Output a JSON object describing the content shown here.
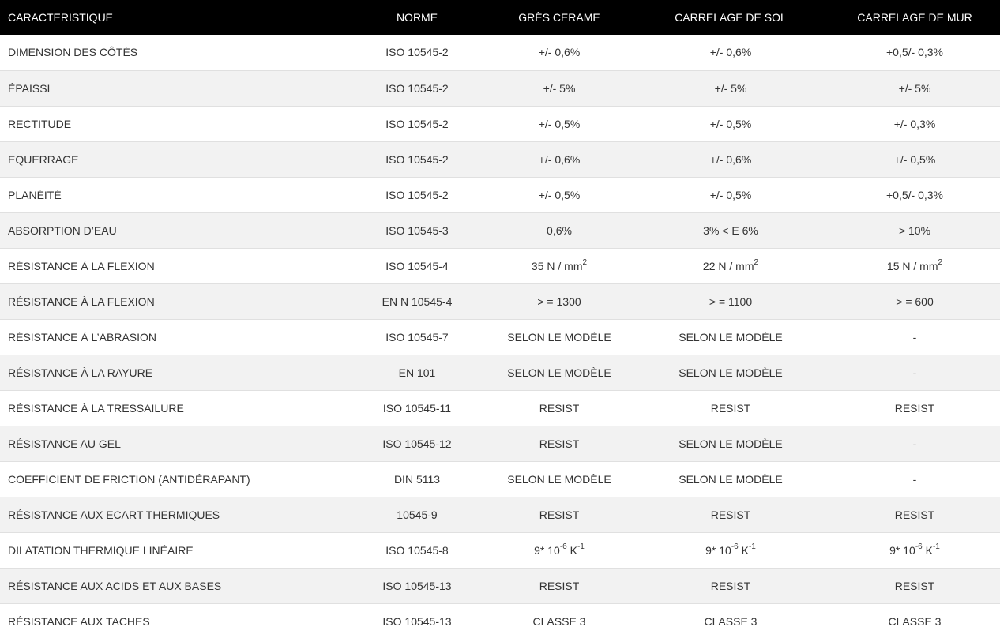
{
  "chart_data": {
    "type": "table",
    "columns": [
      "CARACTERISTIQUE",
      "NORME",
      "GRÈS CERAME",
      "CARRELAGE DE SOL",
      "CARRELAGE DE MUR"
    ],
    "rows": [
      [
        "DIMENSION DES CÔTÉS",
        "ISO 10545-2",
        "+/- 0,6%",
        "+/- 0,6%",
        "+0,5/- 0,3%"
      ],
      [
        "ÉPAISSI",
        "ISO 10545-2",
        "+/- 5%",
        "+/- 5%",
        "+/- 5%"
      ],
      [
        "RECTITUDE",
        "ISO 10545-2",
        "+/- 0,5%",
        "+/- 0,5%",
        "+/- 0,3%"
      ],
      [
        "EQUERRAGE",
        "ISO 10545-2",
        "+/- 0,6%",
        "+/- 0,6%",
        "+/- 0,5%"
      ],
      [
        "PLANÉITÉ",
        "ISO 10545-2",
        "+/- 0,5%",
        "+/- 0,5%",
        "+0,5/- 0,3%"
      ],
      [
        "ABSORPTION D’EAU",
        "ISO 10545-3",
        "0,6%",
        "3% < E 6%",
        "> 10%"
      ],
      [
        "RÉSISTANCE À LA FLEXION",
        "ISO 10545-4",
        "35 N / mm^{2}",
        "22 N / mm^{2}",
        "15 N / mm^{2}"
      ],
      [
        "RÉSISTANCE À LA FLEXION",
        "EN N 10545-4",
        "> = 1300",
        "> = 1100",
        "> = 600"
      ],
      [
        "RÉSISTANCE À L’ABRASION",
        "ISO 10545-7",
        "SELON LE MODÈLE",
        "SELON LE MODÈLE",
        "-"
      ],
      [
        "RÉSISTANCE À LA RAYURE",
        "EN 101",
        "SELON LE MODÈLE",
        "SELON LE MODÈLE",
        "-"
      ],
      [
        "RÉSISTANCE À LA TRESSAILURE",
        "ISO 10545-11",
        "RESIST",
        "RESIST",
        "RESIST"
      ],
      [
        "RÉSISTANCE AU GEL",
        "ISO 10545-12",
        "RESIST",
        "SELON LE MODÈLE",
        "-"
      ],
      [
        "COEFFICIENT DE FRICTION (ANTIDÉRAPANT)",
        "DIN 5113",
        "SELON LE MODÈLE",
        "SELON LE MODÈLE",
        "-"
      ],
      [
        "RÉSISTANCE AUX ECART THERMIQUES",
        "10545-9",
        "RESIST",
        "RESIST",
        "RESIST"
      ],
      [
        "DILATATION THERMIQUE LINÉAIRE",
        "ISO 10545-8",
        "9* 10^{-6} K^{-1}",
        "9* 10^{-6} K^{-1}",
        "9* 10^{-6} K^{-1}"
      ],
      [
        "RÉSISTANCE AUX ACIDS ET AUX BASES",
        "ISO 10545-13",
        "RESIST",
        "RESIST",
        "RESIST"
      ],
      [
        "RÉSISTANCE AUX TACHES",
        "ISO 10545-13",
        "CLASSE 3",
        "CLASSE 3",
        "CLASSE 3"
      ]
    ]
  },
  "colors": {
    "header_bg": "#000000",
    "header_text": "#ffffff",
    "row_bg": "#ffffff",
    "row_alt_bg": "#f2f2f2",
    "divider": "#e0e0e0",
    "cell_text": "#333333"
  }
}
